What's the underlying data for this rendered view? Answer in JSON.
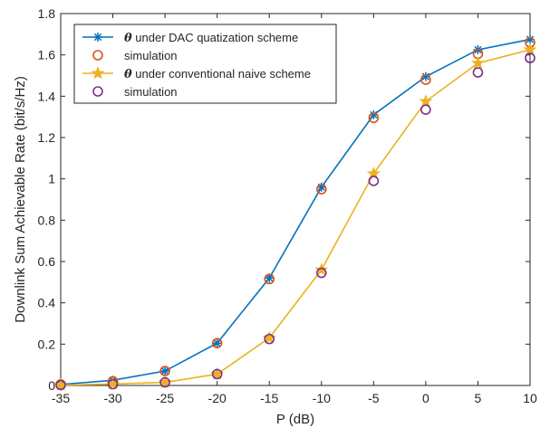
{
  "chart_data": {
    "type": "line",
    "x": [
      -35,
      -30,
      -25,
      -20,
      -15,
      -10,
      -5,
      0,
      5,
      10
    ],
    "xlabel": "P (dB)",
    "ylabel": "Downlink Sum Achievable Rate (bit/s/Hz)",
    "xlim": [
      -35,
      10
    ],
    "ylim": [
      0,
      1.8
    ],
    "xticks": [
      -35,
      -30,
      -25,
      -20,
      -15,
      -10,
      -5,
      0,
      5,
      10
    ],
    "yticks": [
      0,
      0.2,
      0.4,
      0.6,
      0.8,
      1,
      1.2,
      1.4,
      1.6,
      1.8
    ],
    "ytick_labels": [
      "0",
      "0.2",
      "0.4",
      "0.6",
      "0.8",
      "1",
      "1.2",
      "1.4",
      "1.6",
      "1.8"
    ],
    "grid": false,
    "legend_position": "top-left",
    "series": [
      {
        "name": "θ under DAC quatization scheme",
        "name_symbol": "θ",
        "name_rest": " under DAC quatization scheme",
        "style": "line-asterisk",
        "color": "#0072BD",
        "values": [
          0.005,
          0.025,
          0.07,
          0.205,
          0.52,
          0.96,
          1.31,
          1.495,
          1.625,
          1.675
        ]
      },
      {
        "name": "simulation",
        "style": "circle",
        "color": "#D95319",
        "values": [
          0.005,
          0.02,
          0.07,
          0.205,
          0.515,
          0.95,
          1.295,
          1.48,
          1.605,
          1.66
        ]
      },
      {
        "name": "θ under conventional naive scheme",
        "name_symbol": "θ",
        "name_rest": " under conventional naive scheme",
        "style": "line-star",
        "color": "#EDB120",
        "values": [
          0.002,
          0.007,
          0.015,
          0.055,
          0.23,
          0.56,
          1.025,
          1.375,
          1.56,
          1.625
        ]
      },
      {
        "name": "simulation",
        "style": "circle",
        "color": "#7E2F8E",
        "values": [
          0.002,
          0.006,
          0.015,
          0.055,
          0.225,
          0.545,
          0.99,
          1.335,
          1.515,
          1.585
        ]
      }
    ]
  }
}
